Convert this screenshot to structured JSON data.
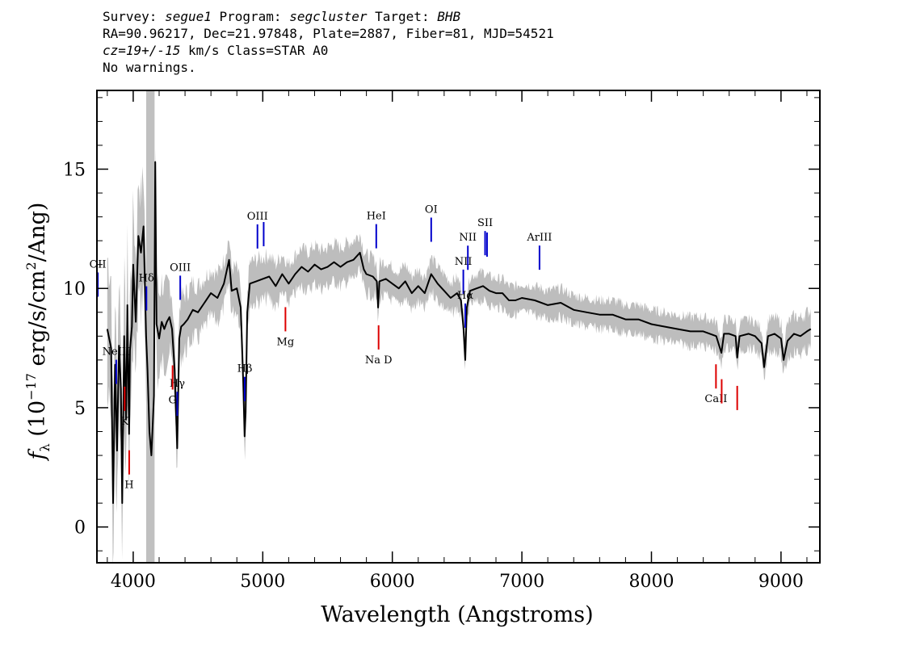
{
  "header": {
    "line1": "Survey: segue1 Program: segcluster Target: BHB",
    "line2": "RA=90.96217, Dec=21.97848, Plate=2887, Fiber=81, MJD=54521",
    "line3": "cz=19+/-15 km/s Class=STAR A0",
    "line4": "No warnings."
  },
  "colors": {
    "flux": "#000000",
    "error_band": "#bdbdbd",
    "emission": "#0000cc",
    "absorption": "#dd0000",
    "masked": "#c0c0c0"
  },
  "chart_data": {
    "type": "line",
    "title": "",
    "xlabel": "Wavelength (Angstroms)",
    "ylabel": "f_λ (10^-17 erg/s/cm^2/Ang)",
    "xlim": [
      3720,
      9300
    ],
    "ylim": [
      -1.5,
      18.3
    ],
    "x_ticks": [
      4000,
      5000,
      6000,
      7000,
      8000,
      9000
    ],
    "y_ticks": [
      0,
      5,
      10,
      15
    ],
    "grid": false,
    "legend": "none",
    "masked_region": [
      4100,
      4165
    ],
    "series": [
      {
        "role": "flux",
        "x": [
          3800,
          3830,
          3845,
          3860,
          3875,
          3890,
          3905,
          3915,
          3930,
          3945,
          3955,
          3968,
          3975,
          3990,
          4000,
          4020,
          4040,
          4060,
          4080,
          4100,
          4110,
          4125,
          4140,
          4160,
          4170,
          4180,
          4200,
          4220,
          4240,
          4260,
          4280,
          4300,
          4320,
          4340,
          4355,
          4370,
          4390,
          4420,
          4460,
          4500,
          4550,
          4600,
          4650,
          4700,
          4740,
          4760,
          4800,
          4830,
          4850,
          4860,
          4868,
          4880,
          4900,
          4950,
          5000,
          5050,
          5100,
          5150,
          5200,
          5250,
          5300,
          5350,
          5400,
          5450,
          5500,
          5550,
          5600,
          5650,
          5700,
          5750,
          5780,
          5800,
          5850,
          5880,
          5890,
          5900,
          5950,
          6000,
          6050,
          6100,
          6150,
          6200,
          6250,
          6300,
          6350,
          6400,
          6450,
          6500,
          6530,
          6550,
          6563,
          6575,
          6600,
          6650,
          6700,
          6750,
          6800,
          6850,
          6900,
          6950,
          7000,
          7100,
          7200,
          7300,
          7400,
          7500,
          7600,
          7700,
          7800,
          7900,
          8000,
          8100,
          8200,
          8300,
          8400,
          8500,
          8540,
          8560,
          8600,
          8650,
          8662,
          8680,
          8750,
          8800,
          8850,
          8870,
          8900,
          8950,
          9000,
          9020,
          9050,
          9100,
          9150,
          9200,
          9230
        ],
        "values": [
          8.3,
          7.5,
          1.0,
          6.8,
          3.2,
          7.6,
          5.8,
          1.0,
          8.0,
          4.5,
          9.3,
          3.9,
          7.4,
          8.4,
          11.0,
          8.6,
          12.2,
          11.5,
          12.6,
          8.0,
          6.6,
          4.0,
          3.0,
          5.5,
          15.3,
          8.5,
          7.9,
          8.6,
          8.3,
          8.6,
          8.8,
          8.3,
          6.6,
          3.3,
          7.9,
          8.4,
          8.5,
          8.7,
          9.1,
          9.0,
          9.4,
          9.8,
          9.6,
          10.2,
          11.2,
          9.9,
          10.0,
          9.2,
          6.0,
          3.8,
          4.8,
          9.0,
          10.2,
          10.3,
          10.4,
          10.5,
          10.1,
          10.6,
          10.2,
          10.6,
          10.9,
          10.7,
          11.0,
          10.8,
          10.9,
          11.1,
          10.9,
          11.1,
          11.2,
          11.5,
          10.8,
          10.6,
          10.5,
          10.3,
          9.2,
          10.3,
          10.4,
          10.2,
          10.0,
          10.3,
          9.8,
          10.1,
          9.8,
          10.6,
          10.2,
          9.9,
          9.6,
          9.8,
          9.5,
          8.3,
          7.0,
          9.2,
          9.9,
          10.0,
          10.1,
          9.9,
          9.8,
          9.8,
          9.5,
          9.5,
          9.6,
          9.5,
          9.3,
          9.4,
          9.1,
          9.0,
          8.9,
          8.9,
          8.7,
          8.7,
          8.5,
          8.4,
          8.3,
          8.2,
          8.2,
          8.0,
          7.3,
          8.1,
          8.1,
          8.0,
          7.1,
          8.0,
          8.1,
          8.0,
          7.7,
          6.7,
          8.0,
          8.1,
          7.9,
          7.0,
          7.8,
          8.1,
          8.0,
          8.2,
          8.3
        ]
      },
      {
        "role": "error_band",
        "x": [
          3800,
          3850,
          3900,
          3950,
          4000,
          4050,
          4180,
          4220,
          4260,
          4300,
          4350,
          4400,
          4500,
          4600,
          4700,
          4800,
          4900,
          5000,
          5100,
          5200,
          5400,
          5600,
          5800,
          6000,
          6200,
          6400,
          6600,
          6800,
          7000,
          7200,
          7400,
          7600,
          7800,
          8000,
          8200,
          8400,
          8600,
          8800,
          9000,
          9230
        ],
        "values": [
          3.0,
          3.0,
          2.9,
          2.8,
          2.6,
          2.4,
          2.0,
          1.7,
          1.5,
          1.4,
          1.3,
          1.2,
          1.1,
          1.0,
          1.0,
          0.9,
          0.9,
          0.9,
          0.9,
          0.8,
          0.8,
          0.8,
          0.8,
          0.7,
          0.7,
          0.7,
          0.6,
          0.6,
          0.6,
          0.6,
          0.6,
          0.6,
          0.6,
          0.6,
          0.6,
          0.6,
          0.6,
          0.6,
          0.7,
          0.8
        ]
      }
    ],
    "emission_lines": [
      {
        "label": "OII",
        "x": 3727
      },
      {
        "label": "NeIII",
        "x": 3869
      },
      {
        "label": "Hδ",
        "x": 4102
      },
      {
        "label": "Hγ",
        "x": 4340
      },
      {
        "label": "OIII",
        "x": 4363
      },
      {
        "label": "Hβ",
        "x": 4861
      },
      {
        "label": "OIII",
        "x": 4959
      },
      {
        "label": "",
        "x": 5007
      },
      {
        "label": "HeI",
        "x": 5876
      },
      {
        "label": "OI",
        "x": 6300
      },
      {
        "label": "NII",
        "x": 6548
      },
      {
        "label": "Hα",
        "x": 6563
      },
      {
        "label": "NII",
        "x": 6583
      },
      {
        "label": "SII",
        "x": 6716
      },
      {
        "label": "",
        "x": 6731
      },
      {
        "label": "ArIII",
        "x": 7136
      }
    ],
    "absorption_lines": [
      {
        "label": "K",
        "x": 3934
      },
      {
        "label": "H",
        "x": 3969
      },
      {
        "label": "G",
        "x": 4304
      },
      {
        "label": "Mg",
        "x": 5175
      },
      {
        "label": "Na  D",
        "x": 5894
      },
      {
        "label": "CaII",
        "x": 8498
      },
      {
        "label": "",
        "x": 8542
      },
      {
        "label": "",
        "x": 8662
      }
    ]
  }
}
